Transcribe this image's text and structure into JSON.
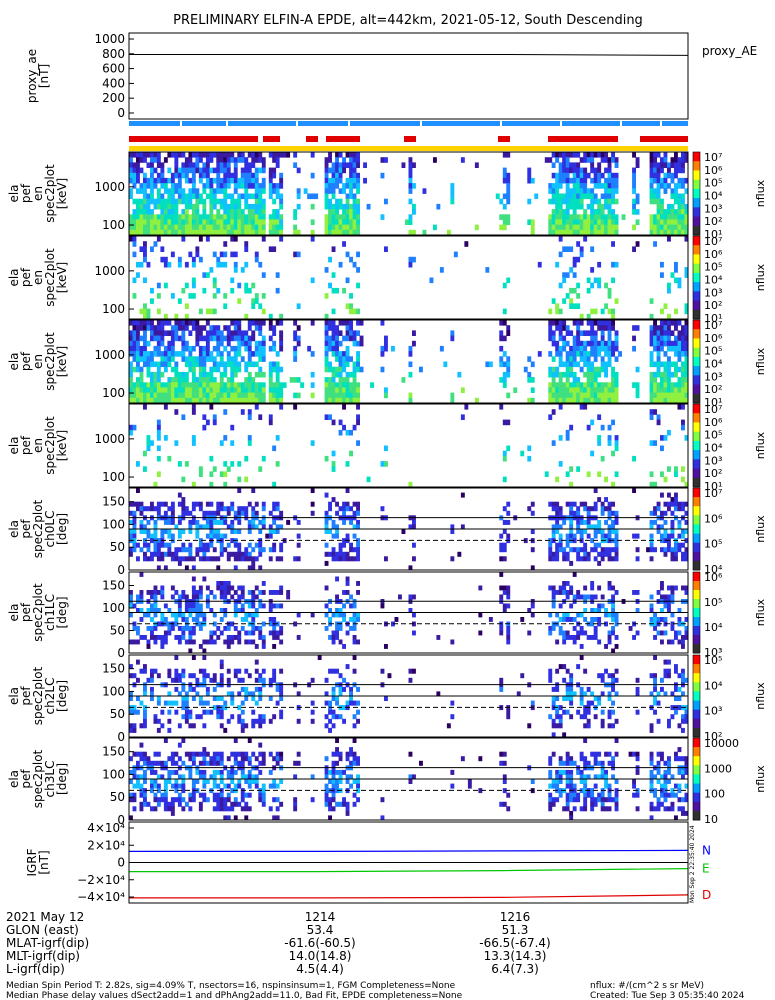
{
  "title": "PRELIMINARY ELFIN-A EPDE, alt=442km, 2021-05-12, South Descending",
  "colors": {
    "sector_bar": "#1e90ff",
    "science_bar": "#e00000",
    "fgm_bar": "#ffd200",
    "n_line": "#0000ff",
    "e_line": "#00c800",
    "d_line": "#e00000",
    "trace": "#000000"
  },
  "chart_data": [
    {
      "type": "line",
      "ylabel": [
        "proxy_ae",
        "[nT]"
      ],
      "yticks": [
        "1000",
        "800",
        "600",
        "400",
        "200",
        "0"
      ],
      "ylim": [
        0,
        1000
      ],
      "series": [
        {
          "name": "proxy_AE",
          "values": [
            750,
            750,
            750,
            740
          ]
        }
      ]
    },
    {
      "type": "heatmap",
      "ylabel": [
        "ela",
        "pef",
        "en",
        "spec2plot",
        "[keV]"
      ],
      "yticks": [
        "1000",
        "100"
      ],
      "cbar_ticks": [
        "10⁷",
        "10⁶",
        "10⁵",
        "10⁴",
        "10³",
        "10²",
        "10¹"
      ],
      "cbar_label": "nflux",
      "density": 0.75,
      "lowband": true
    },
    {
      "type": "heatmap",
      "ylabel": [
        "ela",
        "pef",
        "en",
        "spec2plot",
        "[keV]"
      ],
      "yticks": [
        "1000",
        "100"
      ],
      "cbar_ticks": [
        "10⁷",
        "10⁶",
        "10⁵",
        "10⁴",
        "10³",
        "10²",
        "10¹"
      ],
      "cbar_label": "nflux",
      "density": 0.15,
      "lowband": false
    },
    {
      "type": "heatmap",
      "ylabel": [
        "ela",
        "pef",
        "en",
        "spec2plot",
        "[keV]"
      ],
      "yticks": [
        "1000",
        "100"
      ],
      "cbar_ticks": [
        "10⁷",
        "10⁶",
        "10⁵",
        "10⁴",
        "10³",
        "10²",
        "10¹"
      ],
      "cbar_label": "nflux",
      "density": 0.7,
      "lowband": true
    },
    {
      "type": "heatmap",
      "ylabel": [
        "ela",
        "pef",
        "en",
        "spec2plot",
        "[keV]"
      ],
      "yticks": [
        "1000",
        "100"
      ],
      "cbar_ticks": [
        "10⁷",
        "10⁶",
        "10⁵",
        "10⁴",
        "10³",
        "10²",
        "10¹"
      ],
      "cbar_label": "nflux",
      "density": 0.12,
      "lowband": false
    },
    {
      "type": "heatmap",
      "ylabel": [
        "ela",
        "pef",
        "spec2plot",
        "ch0LC",
        "[deg]"
      ],
      "yticks": [
        "150",
        "100",
        "50",
        "0"
      ],
      "ylim": [
        0,
        180
      ],
      "cbar_ticks": [
        "10⁷",
        "10⁶",
        "10⁵",
        "10⁴"
      ],
      "cbar_label": "nflux",
      "density": 0.55
    },
    {
      "type": "heatmap",
      "ylabel": [
        "ela",
        "pef",
        "spec2plot",
        "ch1LC",
        "[deg]"
      ],
      "yticks": [
        "150",
        "100",
        "50",
        "0"
      ],
      "ylim": [
        0,
        180
      ],
      "cbar_ticks": [
        "10⁶",
        "10⁵",
        "10⁴",
        "10³"
      ],
      "cbar_label": "nflux",
      "density": 0.45
    },
    {
      "type": "heatmap",
      "ylabel": [
        "ela",
        "pef",
        "spec2plot",
        "ch2LC",
        "[deg]"
      ],
      "yticks": [
        "150",
        "100",
        "50",
        "0"
      ],
      "ylim": [
        0,
        180
      ],
      "cbar_ticks": [
        "10⁵",
        "10⁴",
        "10³",
        "10²"
      ],
      "cbar_label": "nflux",
      "density": 0.35
    },
    {
      "type": "heatmap",
      "ylabel": [
        "ela",
        "pef",
        "spec2plot",
        "ch3LC",
        "[deg]"
      ],
      "yticks": [
        "150",
        "100",
        "50",
        "0"
      ],
      "ylim": [
        0,
        180
      ],
      "cbar_ticks": [
        "10000",
        "1000",
        "100",
        "10"
      ],
      "cbar_label": "nflux",
      "density": 0.5
    },
    {
      "type": "line",
      "ylabel": [
        "IGRF",
        "[nT]"
      ],
      "yticks": [
        "4×10⁴",
        "2×10⁴",
        "0",
        "−2×10⁴",
        "−4×10⁴"
      ],
      "ylim": [
        -40000,
        40000
      ],
      "series": [
        {
          "name": "N",
          "values": [
            11000,
            11000,
            11500,
            12000
          ]
        },
        {
          "name": "E",
          "values": [
            -9000,
            -9000,
            -8000,
            -6000
          ]
        },
        {
          "name": "D",
          "values": [
            -35000,
            -35000,
            -34500,
            -32000
          ]
        }
      ]
    }
  ],
  "footer_labels": [
    "2021 May 12",
    "GLON (east)",
    "MLAT-igrf(dip)",
    "MLT-igrf(dip)",
    "L-igrf(dip)"
  ],
  "footer_cols": [
    {
      "time": "1214",
      "vals": [
        "53.4",
        "-61.6(-60.5)",
        "14.0(14.8)",
        "4.5(4.4)"
      ]
    },
    {
      "time": "1216",
      "vals": [
        "51.3",
        "-66.5(-67.4)",
        "13.3(14.3)",
        "6.4(7.3)"
      ]
    }
  ],
  "notes": {
    "line1": "Median Spin Period T: 2.82s, sig=4.09% T, nsectors=16, nspinsinsum=1, FGM Completeness=None",
    "line2": "Median Phase delay values dSect2add=1 and dPhAng2add=11.0, Bad Fit, EPDE completeness=None",
    "units": "nflux: #/(cm^2 s sr MeV)",
    "created": "Created: Tue Sep  3 05:35:40 2024",
    "side_stamp": "Mon Sep  2 22:35:40 2024"
  }
}
